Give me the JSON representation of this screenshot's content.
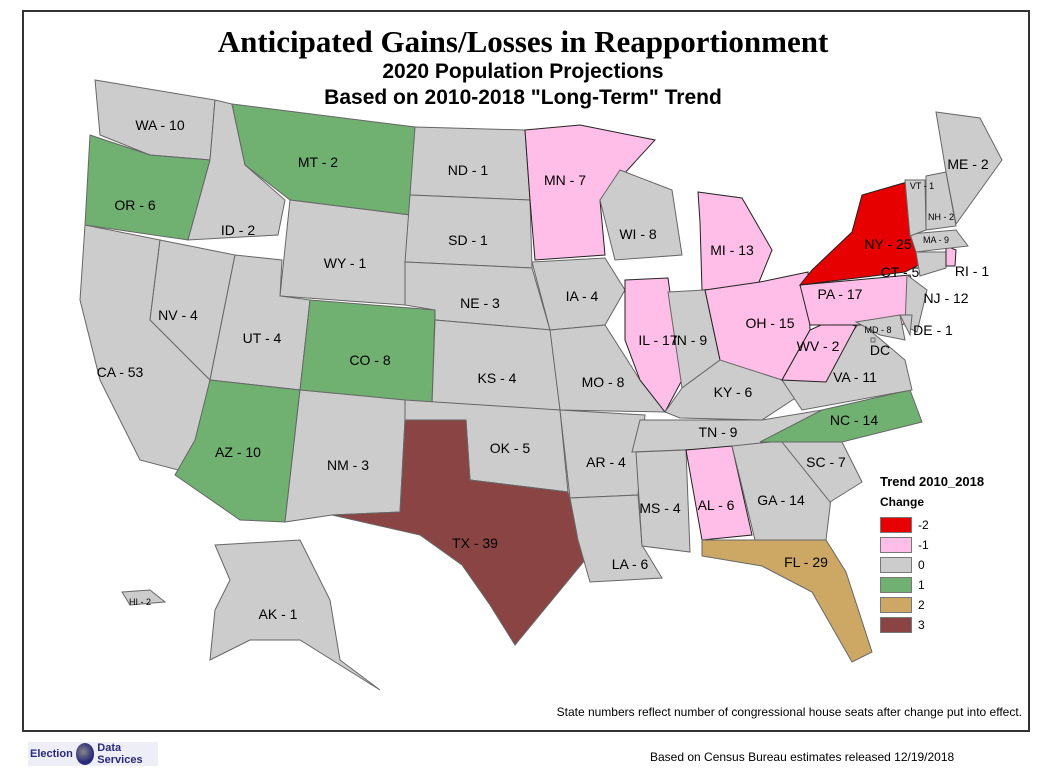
{
  "title": "Anticipated Gains/Losses in Reapportionment",
  "subtitle1": "2020 Population Projections",
  "subtitle2": "Based on 2010-2018 \"Long-Term\" Trend",
  "legend": {
    "title": "Trend 2010_2018",
    "subtitle": "Change",
    "items": [
      {
        "label": "-2",
        "color": "#e60000"
      },
      {
        "label": "-1",
        "color": "#ffbee8"
      },
      {
        "label": "0",
        "color": "#cccccc"
      },
      {
        "label": "1",
        "color": "#70b070"
      },
      {
        "label": "2",
        "color": "#cda865"
      },
      {
        "label": "3",
        "color": "#8a4444"
      }
    ]
  },
  "states": [
    {
      "code": "WA",
      "text": "WA - 10",
      "change": 0
    },
    {
      "code": "OR",
      "text": "OR - 6",
      "change": 1
    },
    {
      "code": "CA",
      "text": "CA - 53",
      "change": 0
    },
    {
      "code": "NV",
      "text": "NV - 4",
      "change": 0
    },
    {
      "code": "ID",
      "text": "ID - 2",
      "change": 0
    },
    {
      "code": "MT",
      "text": "MT - 2",
      "change": 1
    },
    {
      "code": "WY",
      "text": "WY - 1",
      "change": 0
    },
    {
      "code": "UT",
      "text": "UT - 4",
      "change": 0
    },
    {
      "code": "CO",
      "text": "CO - 8",
      "change": 1
    },
    {
      "code": "AZ",
      "text": "AZ - 10",
      "change": 1
    },
    {
      "code": "NM",
      "text": "NM - 3",
      "change": 0
    },
    {
      "code": "ND",
      "text": "ND - 1",
      "change": 0
    },
    {
      "code": "SD",
      "text": "SD - 1",
      "change": 0
    },
    {
      "code": "NE",
      "text": "NE - 3",
      "change": 0
    },
    {
      "code": "KS",
      "text": "KS - 4",
      "change": 0
    },
    {
      "code": "OK",
      "text": "OK - 5",
      "change": 0
    },
    {
      "code": "TX",
      "text": "TX - 39",
      "change": 3
    },
    {
      "code": "MN",
      "text": "MN - 7",
      "change": -1
    },
    {
      "code": "IA",
      "text": "IA - 4",
      "change": 0
    },
    {
      "code": "MO",
      "text": "MO - 8",
      "change": 0
    },
    {
      "code": "AR",
      "text": "AR - 4",
      "change": 0
    },
    {
      "code": "LA",
      "text": "LA - 6",
      "change": 0
    },
    {
      "code": "WI",
      "text": "WI - 8",
      "change": 0
    },
    {
      "code": "IL",
      "text": "IL - 17",
      "change": -1
    },
    {
      "code": "MI",
      "text": "MI - 13",
      "change": -1
    },
    {
      "code": "IN",
      "text": "IN - 9",
      "change": 0
    },
    {
      "code": "OH",
      "text": "OH - 15",
      "change": -1
    },
    {
      "code": "KY",
      "text": "KY - 6",
      "change": 0
    },
    {
      "code": "TN",
      "text": "TN - 9",
      "change": 0
    },
    {
      "code": "MS",
      "text": "MS - 4",
      "change": 0
    },
    {
      "code": "AL",
      "text": "AL - 6",
      "change": -1
    },
    {
      "code": "GA",
      "text": "GA - 14",
      "change": 0
    },
    {
      "code": "FL",
      "text": "FL - 29",
      "change": 2
    },
    {
      "code": "SC",
      "text": "SC - 7",
      "change": 0
    },
    {
      "code": "NC",
      "text": "NC - 14",
      "change": 1
    },
    {
      "code": "VA",
      "text": "VA - 11",
      "change": 0
    },
    {
      "code": "WV",
      "text": "WV - 2",
      "change": -1
    },
    {
      "code": "PA",
      "text": "PA - 17",
      "change": -1
    },
    {
      "code": "NY",
      "text": "NY - 25",
      "change": -2
    },
    {
      "code": "NJ",
      "text": "NJ - 12",
      "change": 0
    },
    {
      "code": "DE",
      "text": "DE - 1",
      "change": 0
    },
    {
      "code": "MD",
      "text": "MD - 8",
      "change": 0
    },
    {
      "code": "DC",
      "text": "DC",
      "change": 0
    },
    {
      "code": "CT",
      "text": "CT - 5",
      "change": 0
    },
    {
      "code": "RI",
      "text": "RI - 1",
      "change": -1
    },
    {
      "code": "MA",
      "text": "MA - 9",
      "change": 0
    },
    {
      "code": "VT",
      "text": "VT - 1",
      "change": 0
    },
    {
      "code": "NH",
      "text": "NH - 2",
      "change": 0
    },
    {
      "code": "ME",
      "text": "ME - 2",
      "change": 0
    },
    {
      "code": "AK",
      "text": "AK - 1",
      "change": 0
    },
    {
      "code": "HI",
      "text": "HI - 2",
      "change": 0
    }
  ],
  "note": "State numbers reflect number of congressional house seats after change put into effect.",
  "source": "Based on Census Bureau estimates released 12/19/2018",
  "logo": {
    "left": "Election",
    "right": "Data Services"
  }
}
